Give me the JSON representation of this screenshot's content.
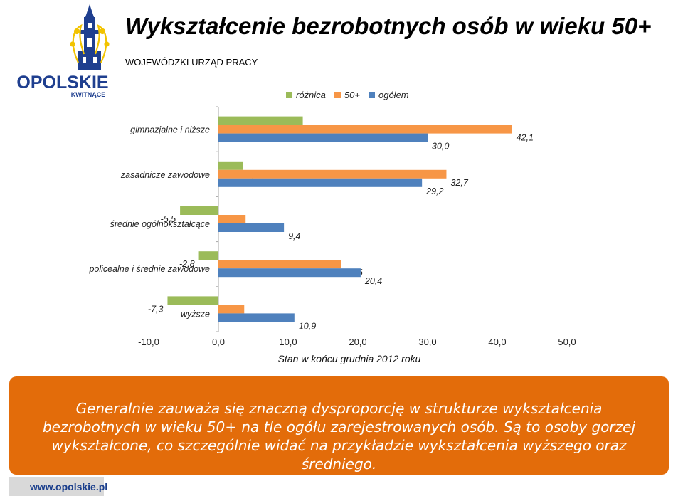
{
  "title": "Wykształcenie bezrobotnych osób w wieku 50+",
  "subtitle": "WOJEWÓDZKI URZĄD PRACY",
  "logo": {
    "name": "OPOLSKIE",
    "tagline": "KWITNĄCE"
  },
  "colors": {
    "roznica": "#9bbb59",
    "p50": "#f79646",
    "ogolem": "#4f81bd",
    "note_bg": "#e36c0a"
  },
  "legend": [
    "różnica",
    "50+",
    "ogółem"
  ],
  "chart_data": {
    "type": "bar",
    "orientation": "horizontal",
    "categories": [
      "gimnazjalne i niższe",
      "zasadnicze zawodowe",
      "średnie ogólnokształcące",
      "policealne i średnie zawodowe",
      "wyższe"
    ],
    "series": [
      {
        "name": "różnica",
        "values": [
          12.1,
          3.5,
          -5.5,
          -2.8,
          -7.3
        ],
        "labels": [
          "12,1",
          "3,5",
          "-5,5",
          "-2,8",
          "-7,3"
        ]
      },
      {
        "name": "50+",
        "values": [
          42.1,
          32.7,
          3.9,
          17.6,
          3.7
        ],
        "labels": [
          "42,1",
          "32,7",
          "3,9",
          "17,6",
          "3,7"
        ]
      },
      {
        "name": "ogółem",
        "values": [
          30.0,
          29.2,
          9.4,
          20.4,
          10.9
        ],
        "labels": [
          "30,0",
          "29,2",
          "9,4",
          "20,4",
          "10,9"
        ]
      }
    ],
    "xlim": [
      -10,
      50
    ],
    "xticks": [
      "-10,0",
      "0,0",
      "10,0",
      "20,0",
      "30,0",
      "40,0",
      "50,0"
    ],
    "xtick_values": [
      -10,
      0,
      10,
      20,
      30,
      40,
      50
    ],
    "xlabel": "Stan w końcu grudnia 2012 roku",
    "legend_position": "top"
  },
  "note": "Generalnie zauważa się znaczną dysproporcję w strukturze wykształcenia bezrobotnych w wieku 50+ na tle ogółu zarejestrowanych osób. Są to osoby gorzej wykształcone, co szczególnie widać na przykładzie wykształcenia wyższego oraz średniego.",
  "website": "www.opolskie.pl"
}
